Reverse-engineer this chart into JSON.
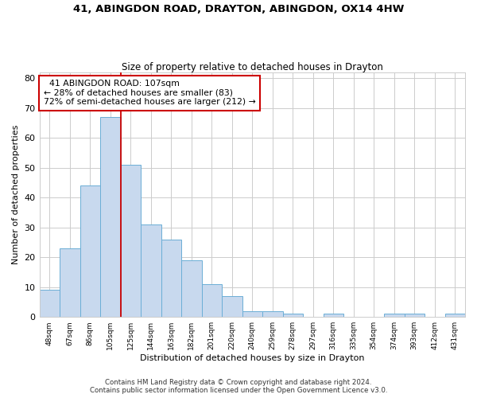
{
  "title_line1": "41, ABINGDON ROAD, DRAYTON, ABINGDON, OX14 4HW",
  "title_line2": "Size of property relative to detached houses in Drayton",
  "xlabel": "Distribution of detached houses by size in Drayton",
  "ylabel": "Number of detached properties",
  "categories": [
    "48sqm",
    "67sqm",
    "86sqm",
    "105sqm",
    "125sqm",
    "144sqm",
    "163sqm",
    "182sqm",
    "201sqm",
    "220sqm",
    "240sqm",
    "259sqm",
    "278sqm",
    "297sqm",
    "316sqm",
    "335sqm",
    "354sqm",
    "374sqm",
    "393sqm",
    "412sqm",
    "431sqm"
  ],
  "values": [
    9,
    23,
    44,
    67,
    51,
    31,
    26,
    19,
    11,
    7,
    2,
    2,
    1,
    0,
    1,
    0,
    0,
    1,
    1,
    0,
    1
  ],
  "bar_color": "#c8d9ee",
  "bar_edge_color": "#6baed6",
  "vline_x": 3.5,
  "vline_color": "#cc0000",
  "annotation_line1": "  41 ABINGDON ROAD: 107sqm",
  "annotation_line2": "← 28% of detached houses are smaller (83)",
  "annotation_line3": "72% of semi-detached houses are larger (212) →",
  "annotation_box_color": "#cc0000",
  "ylim": [
    0,
    82
  ],
  "yticks": [
    0,
    10,
    20,
    30,
    40,
    50,
    60,
    70,
    80
  ],
  "footer_line1": "Contains HM Land Registry data © Crown copyright and database right 2024.",
  "footer_line2": "Contains public sector information licensed under the Open Government Licence v3.0.",
  "background_color": "#ffffff",
  "grid_color": "#cccccc",
  "title_fontsize": 9.5,
  "subtitle_fontsize": 8.5
}
